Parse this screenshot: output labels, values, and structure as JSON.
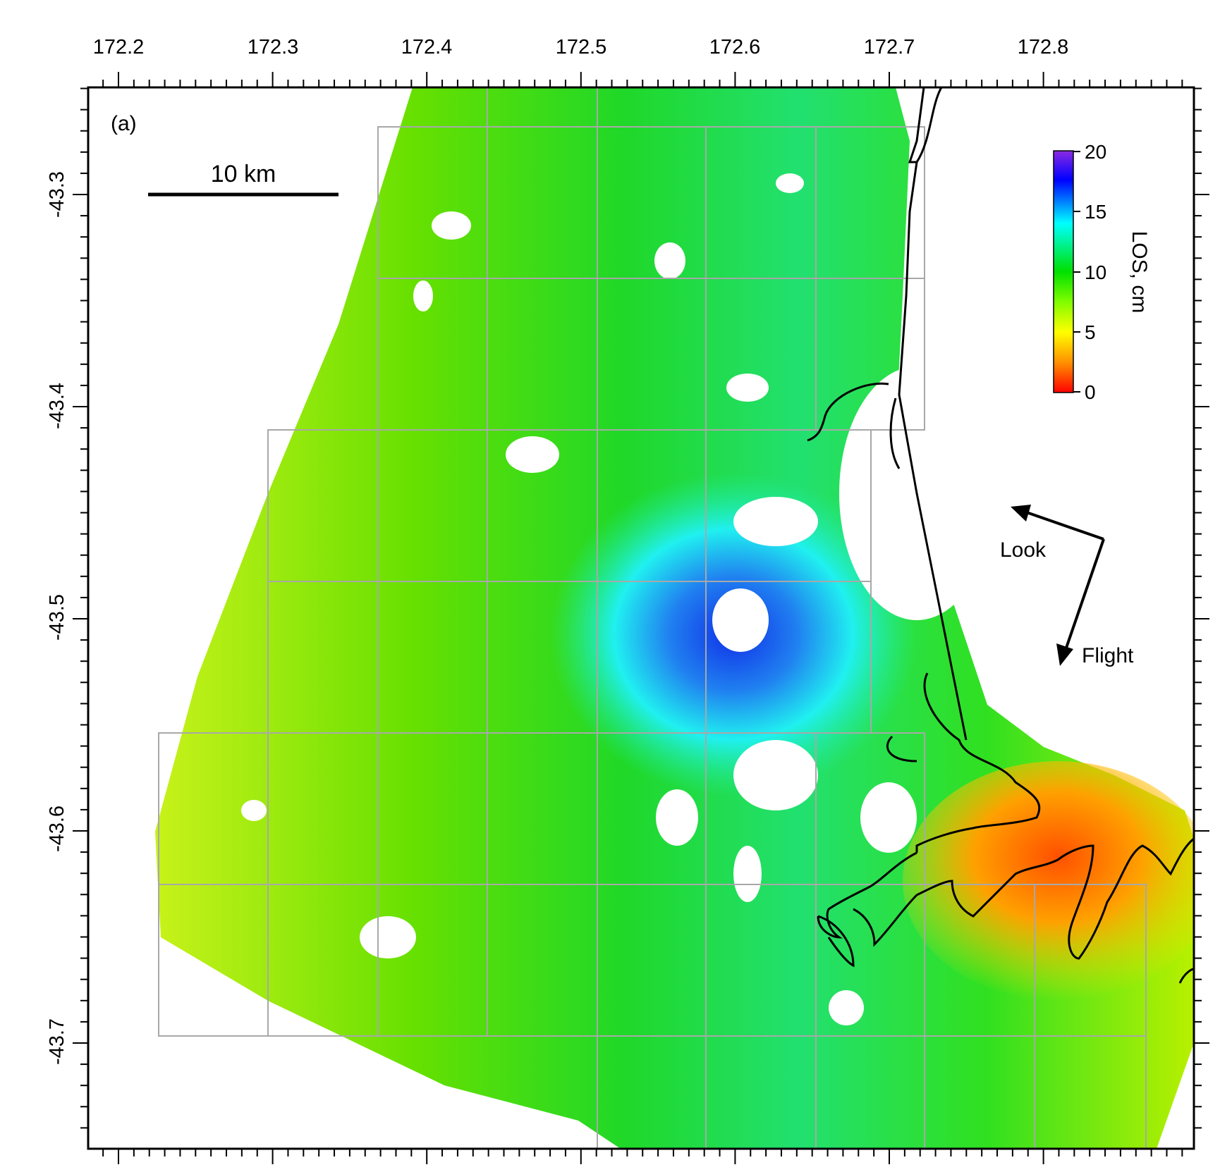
{
  "panel_label": "(a)",
  "lon_ticks": [
    "172.2",
    "172.3",
    "172.4",
    "172.5",
    "172.6",
    "172.7",
    "172.8"
  ],
  "lat_ticks": [
    "-43.3",
    "-43.4",
    "-43.5",
    "-43.6",
    "-43.7"
  ],
  "scale_bar": {
    "label": "10 km"
  },
  "colorbar": {
    "title": "LOS, cm",
    "ticks": [
      "20",
      "15",
      "10",
      "5",
      "0"
    ],
    "colors": [
      "#ff0000",
      "#ff8c00",
      "#ffff00",
      "#7cfc00",
      "#00e000",
      "#00ffff",
      "#0000ff",
      "#8a2be2"
    ]
  },
  "arrows": {
    "look": "Look",
    "flight": "Flight"
  },
  "colors": {
    "frame": "#000000",
    "grid": "#a8a8a8",
    "coast": "#000000"
  }
}
